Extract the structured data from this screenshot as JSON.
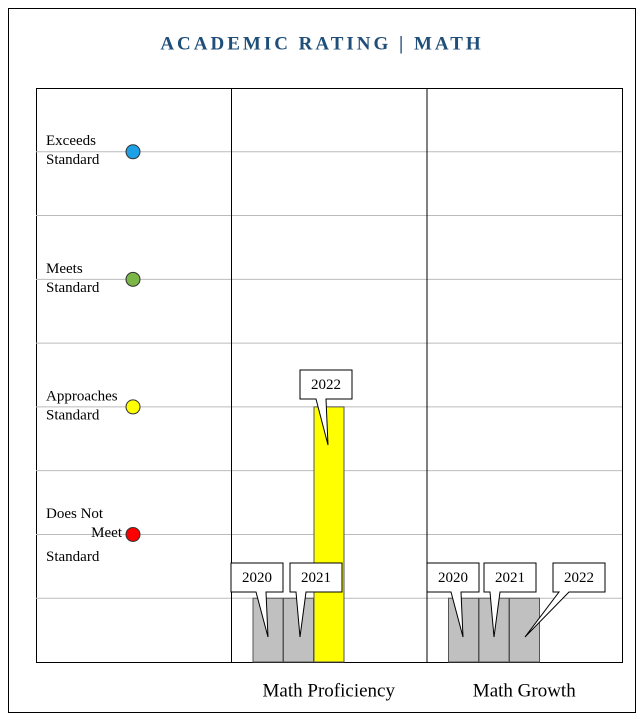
{
  "chart_data": {
    "type": "bar",
    "title": "ACADEMIC RATING | MATH",
    "categories": [
      "Math Proficiency",
      "Math Growth"
    ],
    "series": [
      {
        "name": "2020",
        "values": [
          1,
          1
        ],
        "colors": [
          "#c0c0c0",
          "#c0c0c0"
        ]
      },
      {
        "name": "2021",
        "values": [
          1,
          1
        ],
        "colors": [
          "#c0c0c0",
          "#c0c0c0"
        ]
      },
      {
        "name": "2022",
        "values": [
          4,
          1
        ],
        "colors": [
          "#ffff00",
          "#c0c0c0"
        ]
      }
    ],
    "levels": [
      {
        "label": [
          "Exceeds",
          "Standard"
        ],
        "value": 8,
        "color": "#1ea0e6"
      },
      {
        "label": [
          "Meets",
          "Standard"
        ],
        "value": 6,
        "color": "#7ab648"
      },
      {
        "label": [
          "Approaches",
          "Standard"
        ],
        "value": 4,
        "color": "#ffff00"
      },
      {
        "label": [
          "Does Not",
          "Meet",
          "Standard"
        ],
        "value": 2,
        "color": "#ff0000"
      }
    ],
    "ylim": [
      0,
      9
    ],
    "yticks": [
      1,
      2,
      3,
      4,
      5,
      6,
      7,
      8
    ],
    "grid": true
  }
}
